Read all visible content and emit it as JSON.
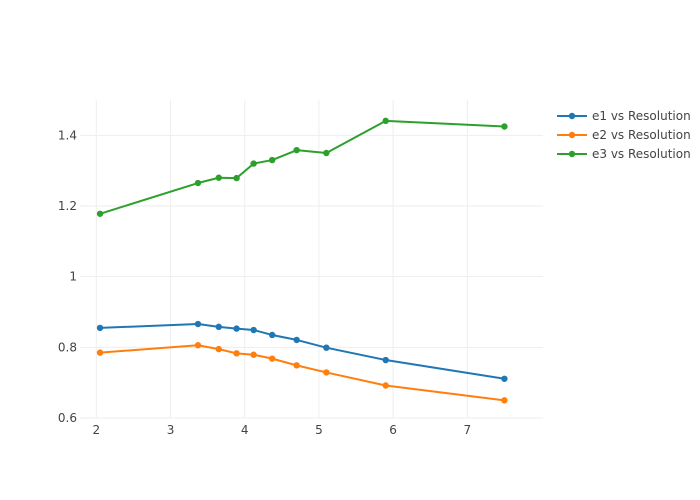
{
  "chart_data": {
    "type": "line",
    "title": "",
    "xlabel": "",
    "ylabel": "",
    "xlim": [
      1.78,
      8.02
    ],
    "ylim": [
      0.6,
      1.5
    ],
    "x_ticks": [
      2,
      3,
      4,
      5,
      6,
      7
    ],
    "y_ticks": [
      0.6,
      0.8,
      1.0,
      1.2,
      1.4
    ],
    "x_tick_labels": [
      "2",
      "3",
      "4",
      "5",
      "6",
      "7"
    ],
    "y_tick_labels": [
      "0.6",
      "0.8",
      "1",
      "1.2",
      "1.4"
    ],
    "grid": true,
    "legend_position": "top-right",
    "x": [
      2.05,
      3.37,
      3.65,
      3.89,
      4.12,
      4.37,
      4.7,
      5.1,
      5.9,
      7.5
    ],
    "series": [
      {
        "name": "e1 vs Resolution",
        "color": "#1f77b4",
        "values": [
          0.855,
          0.866,
          0.858,
          0.853,
          0.849,
          0.835,
          0.821,
          0.799,
          0.764,
          0.711
        ]
      },
      {
        "name": "e2 vs Resolution",
        "color": "#ff7f0e",
        "values": [
          0.785,
          0.806,
          0.795,
          0.783,
          0.779,
          0.768,
          0.749,
          0.729,
          0.692,
          0.65
        ]
      },
      {
        "name": "e3 vs Resolution",
        "color": "#2ca02c",
        "values": [
          1.178,
          1.265,
          1.28,
          1.279,
          1.32,
          1.33,
          1.358,
          1.35,
          1.441,
          1.425
        ]
      }
    ]
  }
}
